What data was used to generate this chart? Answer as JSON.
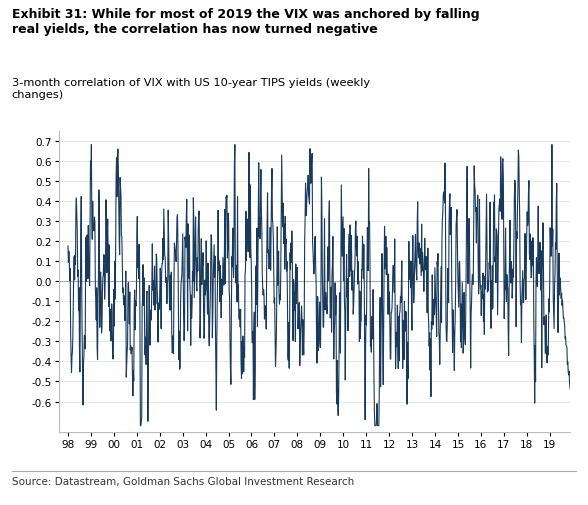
{
  "title_bold": "Exhibit 31: While for most of 2019 the VIX was anchored by falling\nreal yields, the correlation has now turned negative",
  "title_sub": "3-month correlation of VIX with US 10-year TIPS yields (weekly\nchanges)",
  "source": "Source: Datastream, Goldman Sachs Global Investment Research",
  "line_color": "#1a3a5c",
  "line_width": 0.8,
  "ylim": [
    -0.75,
    0.75
  ],
  "yticks": [
    -0.6,
    -0.5,
    -0.4,
    -0.3,
    -0.2,
    -0.1,
    0.0,
    0.1,
    0.2,
    0.3,
    0.4,
    0.5,
    0.6,
    0.7
  ],
  "xtick_labels": [
    "98",
    "99",
    "00",
    "01",
    "02",
    "03",
    "04",
    "05",
    "06",
    "07",
    "08",
    "09",
    "10",
    "11",
    "12",
    "13",
    "14",
    "15",
    "16",
    "17",
    "18",
    "19"
  ],
  "background_color": "#ffffff",
  "zero_line_color": "#aaaaaa",
  "grid_color": "#dddddd"
}
